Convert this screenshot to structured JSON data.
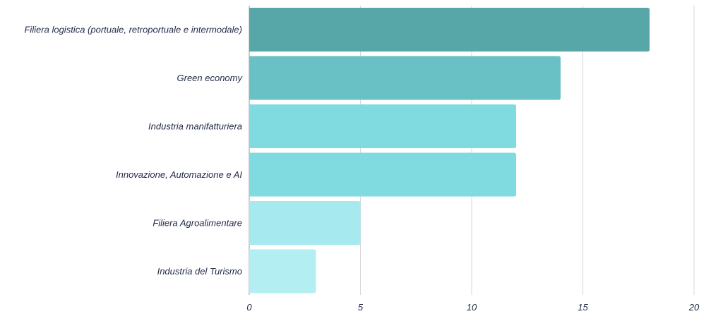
{
  "chart_data": {
    "type": "bar",
    "orientation": "horizontal",
    "title": "",
    "xlabel": "",
    "ylabel": "",
    "categories": [
      "Filiera logistica (portuale, retroportuale e intermodale)",
      "Green economy",
      "Industria manifatturiera",
      "Innovazione, Automazione e AI",
      "Filiera Agroalimentare",
      "Industria del Turismo"
    ],
    "values": [
      18,
      14,
      12,
      12,
      5,
      3
    ],
    "bar_colors": [
      "#57a6a8",
      "#69c1c5",
      "#7fdbe0",
      "#7fdbe0",
      "#a6eaef",
      "#b3eef2"
    ],
    "xlim": [
      0,
      20
    ],
    "xticks": [
      0,
      5,
      10,
      15,
      20
    ],
    "grid": true,
    "legend": "none"
  }
}
